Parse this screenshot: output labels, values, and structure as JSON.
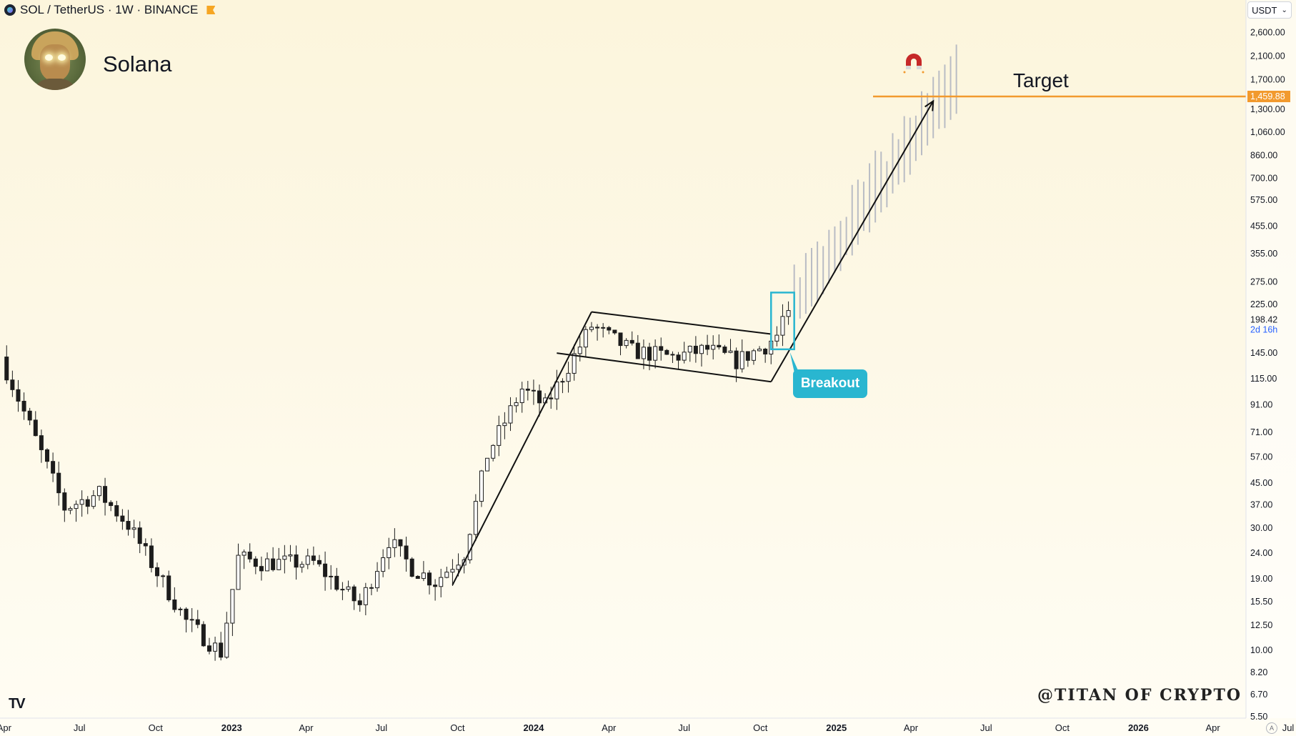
{
  "header": {
    "symbol_line": "SOL / TetherUS · 1W · BINANCE",
    "asset_name": "Solana"
  },
  "currency_selector": {
    "label": "USDT",
    "chevron_icon": "chevron-down-icon"
  },
  "annotations": {
    "breakout_label": "Breakout",
    "target_label": "Target",
    "watermark": "@TITAN OF CRYPTO",
    "magnet_icon": "magnet-icon",
    "arrow_icon": "arrow-up-right-icon"
  },
  "branding": {
    "logo_text": "TV",
    "auto_scale_label": "A"
  },
  "colors": {
    "candle_body": "#1c1c1c",
    "projection": "#b9bcc4",
    "target_line": "#f29a2e",
    "breakout_box": "#29b6d0",
    "trend_lines": "#111111",
    "magnet": "#c62828"
  },
  "chart_data": {
    "type": "candlestick",
    "title": "SOL / TetherUS · 1W · BINANCE",
    "y_scale": "log",
    "ylim": [
      5,
      3000
    ],
    "price_ticks": [
      "2,600.00",
      "2,100.00",
      "1,700.00",
      "1,300.00",
      "1,060.00",
      "860.00",
      "700.00",
      "575.00",
      "455.00",
      "355.00",
      "275.00",
      "225.00",
      "145.00",
      "115.00",
      "91.00",
      "71.00",
      "57.00",
      "45.00",
      "37.00",
      "30.00",
      "24.00",
      "19.00",
      "15.50",
      "12.50",
      "10.00",
      "8.20",
      "6.70",
      "5.50"
    ],
    "time_ticks": [
      "Apr",
      "Jul",
      "Oct",
      "2023",
      "Apr",
      "Jul",
      "Oct",
      "2024",
      "Apr",
      "Jul",
      "Oct",
      "2025",
      "Apr",
      "Jul",
      "Oct",
      "2026",
      "Apr",
      "Jul"
    ],
    "current_price": {
      "value": "198.42",
      "countdown": "2d 16h"
    },
    "target": {
      "label": "Target",
      "value": "1,459.88"
    },
    "trend_anchors": [
      {
        "date": "2022-04-04",
        "price": 140
      },
      {
        "date": "2022-06-20",
        "price": 36
      },
      {
        "date": "2022-08-01",
        "price": 41
      },
      {
        "date": "2022-09-05",
        "price": 31
      },
      {
        "date": "2022-11-14",
        "price": 13
      },
      {
        "date": "2022-12-26",
        "price": 9.8
      },
      {
        "date": "2023-01-16",
        "price": 23
      },
      {
        "date": "2023-02-13",
        "price": 22
      },
      {
        "date": "2023-04-17",
        "price": 22
      },
      {
        "date": "2023-06-12",
        "price": 15
      },
      {
        "date": "2023-07-17",
        "price": 27
      },
      {
        "date": "2023-08-14",
        "price": 21
      },
      {
        "date": "2023-09-11",
        "price": 18.5
      },
      {
        "date": "2023-10-16",
        "price": 24
      },
      {
        "date": "2023-11-13",
        "price": 58
      },
      {
        "date": "2023-12-25",
        "price": 105
      },
      {
        "date": "2024-01-22",
        "price": 90
      },
      {
        "date": "2024-03-18",
        "price": 185
      },
      {
        "date": "2024-05-06",
        "price": 148
      },
      {
        "date": "2024-06-24",
        "price": 140
      },
      {
        "date": "2024-08-05",
        "price": 150
      },
      {
        "date": "2024-09-09",
        "price": 135
      },
      {
        "date": "2024-10-14",
        "price": 155
      },
      {
        "date": "2024-10-28",
        "price": 170
      },
      {
        "date": "2024-11-04",
        "price": 198
      }
    ],
    "flag_channel": {
      "upper": [
        {
          "date": "2024-03-11",
          "price": 210
        },
        {
          "date": "2024-10-14",
          "price": 172
        }
      ],
      "lower": [
        {
          "date": "2024-01-29",
          "price": 145
        },
        {
          "date": "2024-10-14",
          "price": 112
        }
      ]
    },
    "flagpole": [
      {
        "date": "2023-09-25",
        "price": 18
      },
      {
        "date": "2024-03-11",
        "price": 210
      }
    ],
    "projection_arrow": [
      {
        "date": "2024-10-14",
        "price": 112
      },
      {
        "date": "2025-04-28",
        "price": 1400
      }
    ],
    "projection_bars_range": {
      "from": "2024-11-11",
      "to": "2025-05-26",
      "start_price": 210,
      "end_price": 1500
    },
    "breakout_box": {
      "from": "2024-10-14",
      "to": "2024-11-11",
      "low": 150,
      "high": 250
    }
  }
}
